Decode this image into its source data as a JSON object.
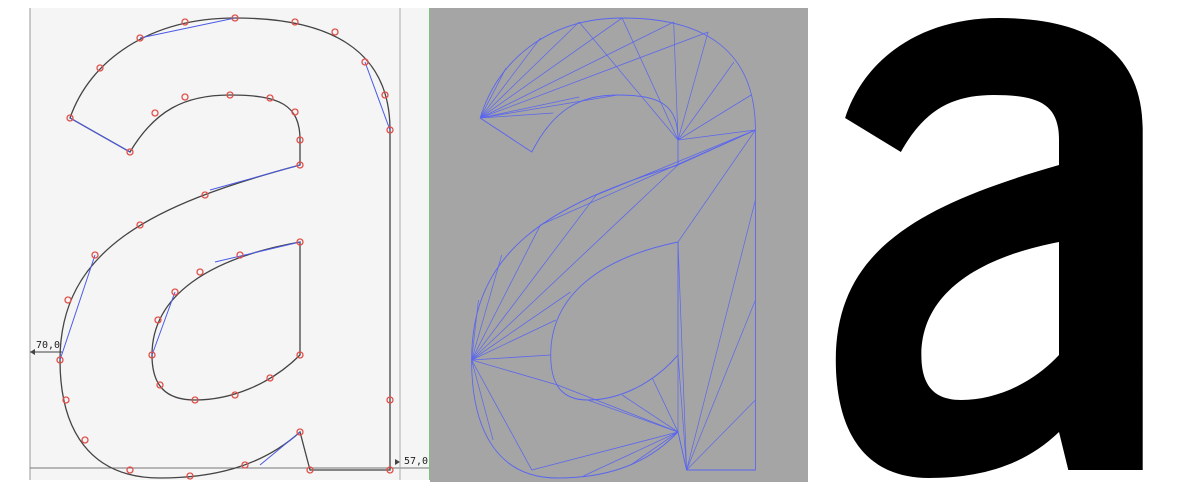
{
  "panels": [
    {
      "name": "outline-editor",
      "background": "#f5f5f5",
      "outline_color": "#444444",
      "handle_color": "#4a5ae6",
      "point_color": "#e0504a"
    },
    {
      "name": "triangulation",
      "background": "#a5a5a5",
      "line_color": "#5a66ee"
    },
    {
      "name": "rendered-glyph",
      "background": "#ffffff",
      "fill": "#000000"
    }
  ],
  "annotations": {
    "left_coord": "70,0",
    "bottom_coord": "57,0"
  },
  "glyph_char": "a"
}
